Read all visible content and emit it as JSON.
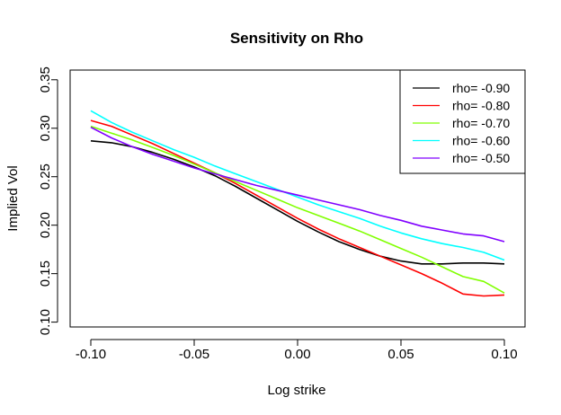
{
  "chart_data": {
    "type": "line",
    "title": "Sensitivity on Rho",
    "xlabel": "Log strike",
    "ylabel": "Implied Vol",
    "xlim": [
      -0.11,
      0.11
    ],
    "ylim": [
      0.095,
      0.36
    ],
    "x_ticks": [
      -0.1,
      -0.05,
      0.0,
      0.05,
      0.1
    ],
    "x_tick_labels": [
      "-0.10",
      "-0.05",
      "0.00",
      "0.05",
      "0.10"
    ],
    "y_ticks": [
      0.1,
      0.15,
      0.2,
      0.25,
      0.3,
      0.35
    ],
    "y_tick_labels": [
      "0.10",
      "0.15",
      "0.20",
      "0.25",
      "0.30",
      "0.35"
    ],
    "grid": false,
    "legend_position": "top-right",
    "x": [
      -0.1,
      -0.09,
      -0.08,
      -0.07,
      -0.06,
      -0.05,
      -0.04,
      -0.03,
      -0.02,
      -0.01,
      0.0,
      0.01,
      0.02,
      0.03,
      0.04,
      0.05,
      0.06,
      0.07,
      0.08,
      0.09,
      0.1
    ],
    "series": [
      {
        "name": "rho= -0.90",
        "color": "#000000",
        "values": [
          0.287,
          0.285,
          0.281,
          0.275,
          0.268,
          0.26,
          0.251,
          0.24,
          0.228,
          0.216,
          0.204,
          0.193,
          0.183,
          0.175,
          0.168,
          0.163,
          0.16,
          0.16,
          0.161,
          0.161,
          0.16
        ]
      },
      {
        "name": "rho= -0.80",
        "color": "#ff0000",
        "values": [
          0.308,
          0.302,
          0.293,
          0.284,
          0.274,
          0.264,
          0.254,
          0.243,
          0.231,
          0.219,
          0.207,
          0.196,
          0.186,
          0.177,
          0.168,
          0.159,
          0.15,
          0.14,
          0.129,
          0.127,
          0.128
        ]
      },
      {
        "name": "rho= -0.70",
        "color": "#80ff00",
        "values": [
          0.302,
          0.295,
          0.288,
          0.28,
          0.272,
          0.263,
          0.254,
          0.245,
          0.236,
          0.227,
          0.218,
          0.21,
          0.202,
          0.194,
          0.185,
          0.176,
          0.167,
          0.157,
          0.147,
          0.142,
          0.13
        ]
      },
      {
        "name": "rho= -0.60",
        "color": "#00ffff",
        "values": [
          0.318,
          0.306,
          0.296,
          0.287,
          0.278,
          0.27,
          0.261,
          0.253,
          0.245,
          0.237,
          0.229,
          0.221,
          0.214,
          0.207,
          0.199,
          0.192,
          0.186,
          0.181,
          0.177,
          0.172,
          0.164
        ]
      },
      {
        "name": "rho= -0.50",
        "color": "#8000ff",
        "values": [
          0.301,
          0.29,
          0.281,
          0.273,
          0.266,
          0.259,
          0.253,
          0.247,
          0.241,
          0.236,
          0.231,
          0.226,
          0.221,
          0.216,
          0.21,
          0.205,
          0.199,
          0.195,
          0.191,
          0.189,
          0.183
        ]
      }
    ]
  }
}
